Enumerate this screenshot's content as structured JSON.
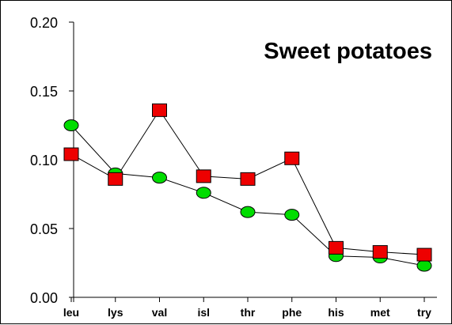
{
  "chart_data": {
    "type": "line",
    "title": "Sweet potatoes",
    "xlabel": "",
    "ylabel": "",
    "categories": [
      "leu",
      "lys",
      "val",
      "isl",
      "thr",
      "phe",
      "his",
      "met",
      "try"
    ],
    "ylim": [
      0,
      0.2
    ],
    "yticks": [
      "0.00",
      "0.05",
      "0.10",
      "0.15",
      "0.20"
    ],
    "ytick_values": [
      0,
      0.05,
      0.1,
      0.15,
      0.2
    ],
    "grid": false,
    "series": [
      {
        "marker": "circle",
        "color": "#00dd00",
        "values": [
          0.125,
          0.09,
          0.087,
          0.076,
          0.062,
          0.06,
          0.03,
          0.029,
          0.023
        ]
      },
      {
        "marker": "square",
        "color": "#ee0000",
        "values": [
          0.104,
          0.086,
          0.136,
          0.088,
          0.086,
          0.101,
          0.036,
          0.033,
          0.031
        ]
      }
    ]
  }
}
